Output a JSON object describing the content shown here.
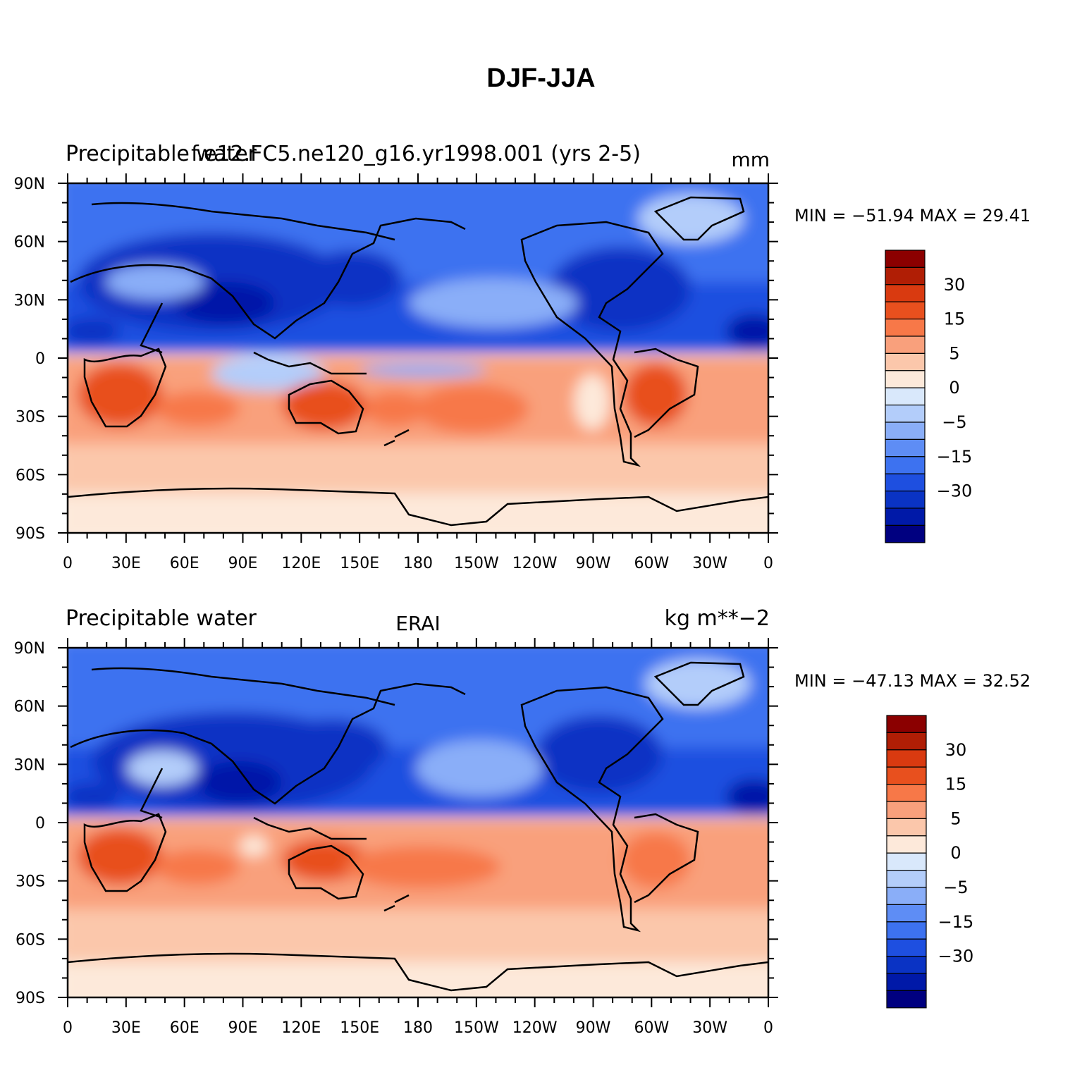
{
  "title": "DJF-JJA",
  "x_ticks": [
    "0",
    "30E",
    "60E",
    "90E",
    "120E",
    "150E",
    "180",
    "150W",
    "120W",
    "90W",
    "60W",
    "30W",
    "0"
  ],
  "y_ticks": [
    "90N",
    "60N",
    "30N",
    "0",
    "30S",
    "60S",
    "90S"
  ],
  "colors": {
    "levels": [
      "#000080",
      "#0019a8",
      "#0a33c4",
      "#1e4fe0",
      "#3d72f0",
      "#5e8df5",
      "#8aaef8",
      "#b3cdfa",
      "#d9e8fb",
      "#fde9da",
      "#fbc7ab",
      "#f9a07c",
      "#f77848",
      "#e8501e",
      "#d93a10",
      "#b01e05",
      "#8b0000"
    ],
    "land_line": "#000000"
  },
  "panels": [
    {
      "left_title": "Precipitable water",
      "center_title": "f.e12.FC5.ne120_g16.yr1998.001 (yrs 2-5)",
      "right_title": "mm",
      "min_max": "MIN = −51.94 MAX =  29.41",
      "colorbar_labels": [
        "30",
        "15",
        "5",
        "0",
        "−5",
        "−15",
        "−30"
      ]
    },
    {
      "left_title": "Precipitable water",
      "center_title": "ERAI",
      "right_title": "kg m**−2",
      "min_max": "MIN = −47.13 MAX =  32.52",
      "colorbar_labels": [
        "30",
        "15",
        "5",
        "0",
        "−5",
        "−15",
        "−30"
      ]
    }
  ]
}
